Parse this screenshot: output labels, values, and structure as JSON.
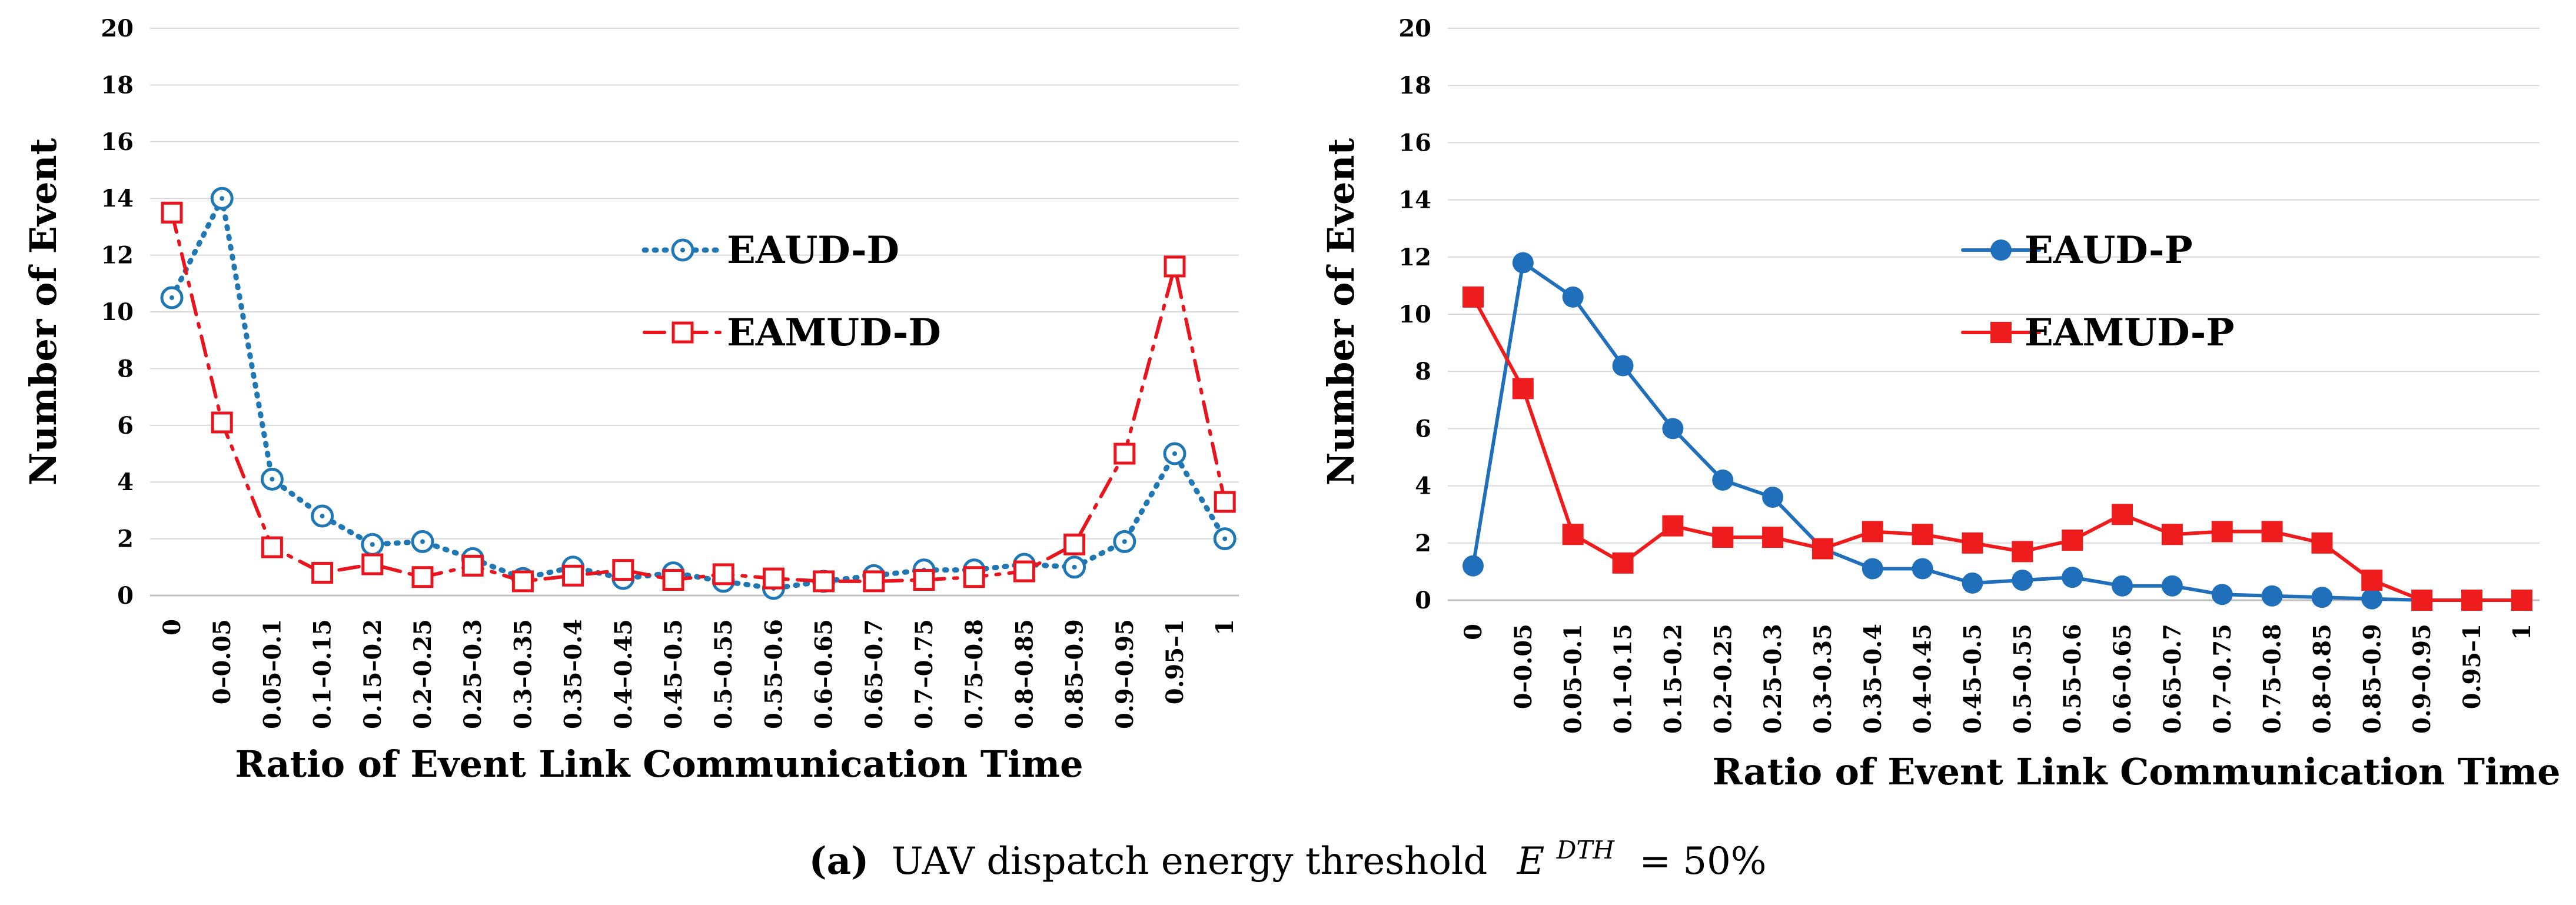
{
  "chart_data": [
    {
      "type": "line",
      "xlabel": "Ratio of Event Link Communication Time",
      "ylabel": "Number of Event",
      "ylim": [
        0,
        20
      ],
      "yticks": [
        "0",
        "2",
        "4",
        "6",
        "8",
        "10",
        "12",
        "14",
        "16",
        "18",
        "20"
      ],
      "grid": true,
      "legend_position": "center-right",
      "categories": [
        "0",
        "0–0.05",
        "0.05–0.1",
        "0.1–0.15",
        "0.15–0.2",
        "0.2–0.25",
        "0.25–0.3",
        "0.3–0.35",
        "0.35–0.4",
        "0.4–0.45",
        "0.45–0.5",
        "0.5–0.55",
        "0.55–0.6",
        "0.6–0.65",
        "0.65–0.7",
        "0.7–0.75",
        "0.75–0.8",
        "0.8–0.85",
        "0.85–0.9",
        "0.9–0.95",
        "0.95–1",
        "1"
      ],
      "series": [
        {
          "name": "EAUD-D",
          "color": "#1f77b4",
          "marker": "open-circle",
          "line": "dotted",
          "values": [
            10.5,
            14.0,
            4.1,
            2.8,
            1.8,
            1.9,
            1.3,
            0.6,
            1.0,
            0.6,
            0.8,
            0.5,
            0.25,
            0.5,
            0.7,
            0.9,
            0.9,
            1.1,
            1.0,
            1.9,
            5.0,
            2.0
          ]
        },
        {
          "name": "EAMUD-D",
          "color": "#e8141e",
          "marker": "open-square",
          "line": "dash-dot",
          "values": [
            13.5,
            6.1,
            1.7,
            0.8,
            1.1,
            0.65,
            1.05,
            0.5,
            0.7,
            0.9,
            0.55,
            0.75,
            0.6,
            0.5,
            0.5,
            0.55,
            0.65,
            0.85,
            1.8,
            5.0,
            11.6,
            3.3
          ]
        }
      ]
    },
    {
      "type": "line",
      "xlabel": "Ratio of Event Link Communication Time",
      "ylabel": "Number of Event",
      "ylim": [
        0,
        20
      ],
      "yticks": [
        "0",
        "2",
        "4",
        "6",
        "8",
        "10",
        "12",
        "14",
        "16",
        "18",
        "20"
      ],
      "grid": true,
      "legend_position": "center-right",
      "categories": [
        "0",
        "0–0.05",
        "0.05–0.1",
        "0.1–0.15",
        "0.15–0.2",
        "0.2–0.25",
        "0.25–0.3",
        "0.3–0.35",
        "0.35–0.4",
        "0.4–0.45",
        "0.45–0.5",
        "0.5–0.55",
        "0.55–0.6",
        "0.6–0.65",
        "0.65–0.7",
        "0.7–0.75",
        "0.75–0.8",
        "0.8–0.85",
        "0.85–0.9",
        "0.9–0.95",
        "0.95–1",
        "1"
      ],
      "series": [
        {
          "name": "EAUD-P",
          "color": "#1f6fba",
          "marker": "filled-circle",
          "line": "solid",
          "values": [
            1.2,
            11.8,
            10.6,
            8.2,
            6.0,
            4.2,
            3.6,
            1.8,
            1.1,
            1.1,
            0.6,
            0.7,
            0.8,
            0.5,
            0.5,
            0.2,
            0.15,
            0.1,
            0.05,
            0.0,
            0.0,
            0.0
          ]
        },
        {
          "name": "EAMUD-P",
          "color": "#ee1c1c",
          "marker": "filled-square",
          "line": "solid",
          "values": [
            10.6,
            7.4,
            2.3,
            1.3,
            2.6,
            2.2,
            2.2,
            1.8,
            2.4,
            2.3,
            2.0,
            1.7,
            2.1,
            3.0,
            2.3,
            2.4,
            2.4,
            2.0,
            0.7,
            0.0,
            0.0,
            0.0
          ]
        }
      ]
    }
  ],
  "caption": {
    "label": "(a)",
    "text": "UAV dispatch energy threshold",
    "symbol": "E",
    "superscript": "DTH",
    "value": "= 50%"
  }
}
